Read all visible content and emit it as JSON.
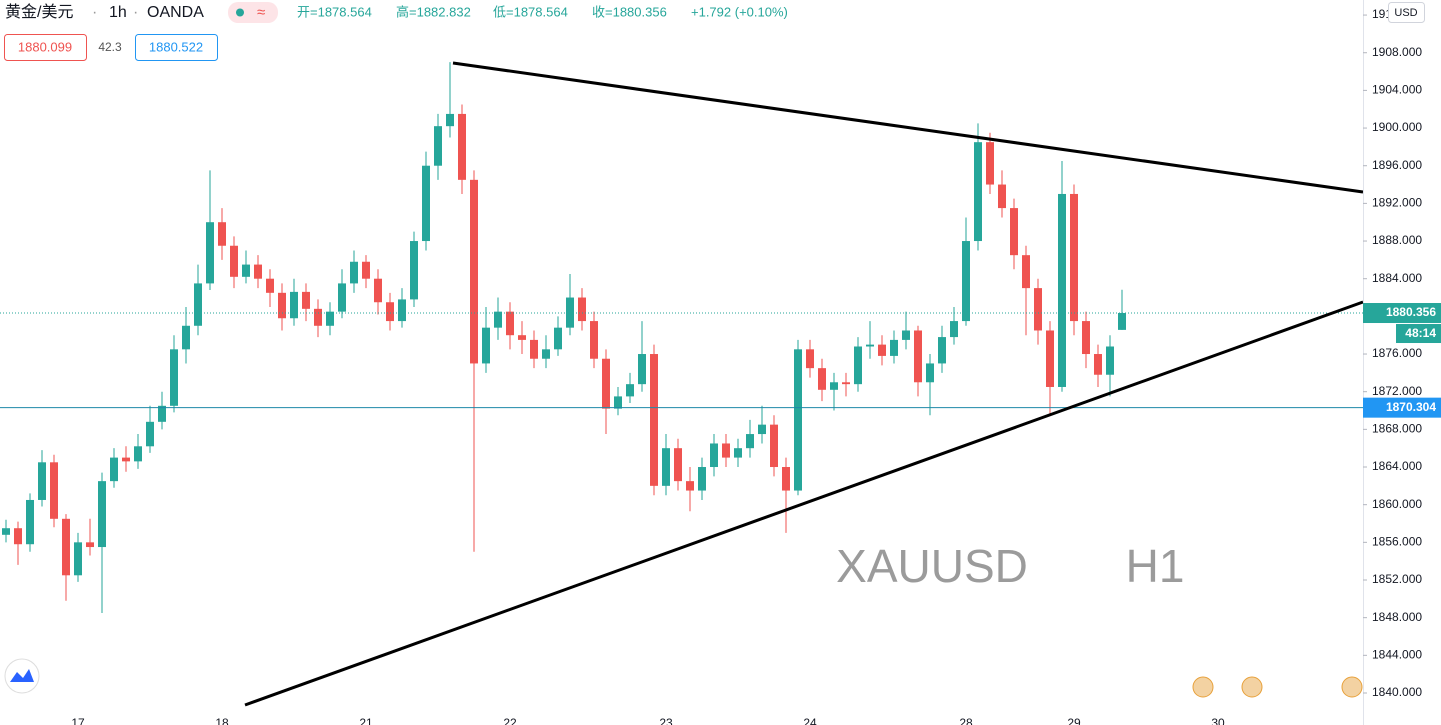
{
  "header": {
    "symbol": "黄金/美元",
    "interval": "1h",
    "source": "OANDA",
    "open": "开=1878.564",
    "high": "高=1882.832",
    "low": "低=1878.564",
    "close": "收=1880.356",
    "change": "+1.792 (+0.10%)",
    "bid": 1880.099,
    "spread": 42.3,
    "ask": 1880.522,
    "currency": "USD"
  },
  "chart_data": {
    "type": "candlestick",
    "watermark": [
      "XAUUSD",
      "H1"
    ],
    "up_color": "#26a69a",
    "down_color": "#ef5350",
    "categories": [
      null,
      null,
      null,
      null,
      null,
      null,
      "17",
      null,
      null,
      null,
      null,
      null,
      null,
      null,
      null,
      null,
      null,
      null,
      "18",
      null,
      null,
      null,
      null,
      null,
      null,
      null,
      null,
      null,
      null,
      null,
      "21",
      null,
      null,
      null,
      null,
      null,
      null,
      null,
      null,
      null,
      null,
      null,
      "22",
      null,
      null,
      null,
      null,
      null,
      null,
      null,
      null,
      null,
      null,
      null,
      null,
      "23",
      null,
      null,
      null,
      null,
      null,
      null,
      null,
      null,
      null,
      null,
      null,
      "24",
      null,
      null,
      null,
      null,
      null,
      null,
      null,
      null,
      null,
      null,
      null,
      null,
      "28",
      null,
      null,
      null,
      null,
      null,
      null,
      null,
      null,
      "29",
      null,
      null,
      null,
      null,
      null,
      null,
      null,
      null,
      null,
      null,
      null,
      "30"
    ],
    "open": [
      1856.8,
      1857.5,
      1855.8,
      1860.5,
      1864.5,
      1858.5,
      1852.5,
      1856.0,
      1855.5,
      1862.5,
      1865.0,
      1864.6,
      1866.2,
      1868.8,
      1870.5,
      1876.5,
      1879.0,
      1883.5,
      1890.0,
      1887.5,
      1884.2,
      1885.5,
      1884.0,
      1882.5,
      1879.8,
      1882.6,
      1880.8,
      1879.0,
      1880.5,
      1883.5,
      1885.8,
      1884.0,
      1881.5,
      1879.5,
      1881.8,
      1888.0,
      1896.0,
      1900.2,
      1901.5,
      1894.5,
      1875.0,
      1878.8,
      1880.5,
      1878.0,
      1877.5,
      1875.5,
      1876.5,
      1878.8,
      1882.0,
      1879.5,
      1875.5,
      1870.2,
      1871.5,
      1872.8,
      1876.0,
      1862.0,
      1866.0,
      1862.5,
      1861.5,
      1864.0,
      1866.5,
      1865.0,
      1866.0,
      1867.5,
      1868.5,
      1864.0,
      1861.5,
      1876.5,
      1874.5,
      1872.2,
      1873.0,
      1872.8,
      1876.8,
      1877.0,
      1875.8,
      1877.5,
      1878.5,
      1873.0,
      1875.0,
      1877.8,
      1879.5,
      1888.0,
      1898.5,
      1894.0,
      1891.5,
      1886.5,
      1883.0,
      1878.5,
      1872.5,
      1893.0,
      1879.5,
      1876.0,
      1873.8,
      1878.564,
      null,
      null,
      null,
      null,
      null,
      null,
      null,
      null
    ],
    "high": [
      1858.4,
      1858.2,
      1861.2,
      1865.8,
      1865.3,
      1859.0,
      1857.0,
      1858.5,
      1863.4,
      1866.0,
      1866.2,
      1867.5,
      1870.5,
      1872.0,
      1878.0,
      1881.0,
      1885.5,
      1895.5,
      1891.5,
      1888.5,
      1887.0,
      1886.5,
      1885.0,
      1883.5,
      1884.0,
      1883.5,
      1881.8,
      1881.5,
      1885.0,
      1887.0,
      1886.5,
      1885.0,
      1882.5,
      1883.0,
      1889.0,
      1897.5,
      1901.5,
      1907.0,
      1902.5,
      1895.5,
      1881.0,
      1882.0,
      1881.5,
      1879.5,
      1878.5,
      1878.0,
      1880.0,
      1884.5,
      1883.0,
      1880.5,
      1876.5,
      1872.5,
      1874.0,
      1879.5,
      1877.0,
      1867.5,
      1867.0,
      1864.0,
      1865.0,
      1867.5,
      1867.5,
      1867.0,
      1869.0,
      1870.5,
      1869.5,
      1865.0,
      1877.5,
      1877.5,
      1875.5,
      1874.0,
      1874.0,
      1877.8,
      1879.5,
      1878.0,
      1878.5,
      1880.5,
      1879.0,
      1876.0,
      1879.0,
      1881.0,
      1890.5,
      1900.5,
      1899.5,
      1895.5,
      1892.5,
      1887.5,
      1884.0,
      1879.5,
      1896.5,
      1894.0,
      1880.5,
      1877.0,
      1878.0,
      1882.832,
      null,
      null,
      null,
      null,
      null,
      null,
      null,
      null
    ],
    "low": [
      1856.0,
      1853.6,
      1855.0,
      1859.8,
      1857.6,
      1849.8,
      1851.8,
      1854.6,
      1848.5,
      1861.8,
      1863.5,
      1863.8,
      1865.5,
      1868.0,
      1869.8,
      1875.0,
      1878.0,
      1882.8,
      1886.0,
      1883.0,
      1883.5,
      1883.0,
      1881.0,
      1878.5,
      1879.0,
      1879.5,
      1877.8,
      1878.0,
      1879.8,
      1882.5,
      1883.0,
      1880.2,
      1878.5,
      1878.8,
      1881.0,
      1887.0,
      1894.5,
      1899.0,
      1893.0,
      1855.0,
      1874.0,
      1877.5,
      1876.5,
      1876.0,
      1874.5,
      1874.5,
      1875.8,
      1878.0,
      1878.5,
      1874.5,
      1867.5,
      1869.5,
      1870.8,
      1872.0,
      1861.0,
      1861.0,
      1861.5,
      1859.3,
      1860.5,
      1863.0,
      1864.0,
      1864.0,
      1865.0,
      1866.5,
      1863.0,
      1857.0,
      1861.0,
      1873.5,
      1871.0,
      1870.0,
      1871.5,
      1872.0,
      1875.5,
      1874.8,
      1875.0,
      1876.5,
      1871.5,
      1869.5,
      1874.0,
      1877.0,
      1879.0,
      1887.0,
      1893.0,
      1890.5,
      1885.0,
      1878.0,
      1877.0,
      1869.5,
      1872.0,
      1878.0,
      1874.5,
      1872.5,
      1871.5,
      1878.564,
      null,
      null,
      null,
      null,
      null,
      null,
      null,
      null
    ],
    "close": [
      1857.5,
      1855.8,
      1860.5,
      1864.5,
      1858.5,
      1852.5,
      1856.0,
      1855.5,
      1862.5,
      1865.0,
      1864.6,
      1866.2,
      1868.8,
      1870.5,
      1876.5,
      1879.0,
      1883.5,
      1890.0,
      1887.5,
      1884.2,
      1885.5,
      1884.0,
      1882.5,
      1879.8,
      1882.6,
      1880.8,
      1879.0,
      1880.5,
      1883.5,
      1885.8,
      1884.0,
      1881.5,
      1879.5,
      1881.8,
      1888.0,
      1896.0,
      1900.2,
      1901.5,
      1894.5,
      1875.0,
      1878.8,
      1880.5,
      1878.0,
      1877.5,
      1875.5,
      1876.5,
      1878.8,
      1882.0,
      1879.5,
      1875.5,
      1870.2,
      1871.5,
      1872.8,
      1876.0,
      1862.0,
      1866.0,
      1862.5,
      1861.5,
      1864.0,
      1866.5,
      1865.0,
      1866.0,
      1867.5,
      1868.5,
      1864.0,
      1861.5,
      1876.5,
      1874.5,
      1872.2,
      1873.0,
      1872.8,
      1876.8,
      1877.0,
      1875.8,
      1877.5,
      1878.5,
      1873.0,
      1875.0,
      1877.8,
      1879.5,
      1888.0,
      1898.5,
      1894.0,
      1891.5,
      1886.5,
      1883.0,
      1878.5,
      1872.5,
      1893.0,
      1879.5,
      1876.0,
      1873.8,
      1876.8,
      1880.356,
      null,
      null,
      null,
      null,
      null,
      null,
      null,
      null
    ],
    "ylim": [
      1836.6,
      1913.6
    ],
    "yticks": [
      {
        "value": 1840,
        "label": "1840.000"
      },
      {
        "value": 1844,
        "label": "1844.000"
      },
      {
        "value": 1848,
        "label": "1848.000"
      },
      {
        "value": 1852,
        "label": "1852.000"
      },
      {
        "value": 1856,
        "label": "1856.000"
      },
      {
        "value": 1860,
        "label": "1860.000"
      },
      {
        "value": 1864,
        "label": "1864.000"
      },
      {
        "value": 1868,
        "label": "1868.000"
      },
      {
        "value": 1872,
        "label": "1872.000"
      },
      {
        "value": 1876,
        "label": "1876.000"
      },
      {
        "value": 1880,
        "label": "1880.000"
      },
      {
        "value": 1884,
        "label": "1884.000"
      },
      {
        "value": 1888,
        "label": "1888.000"
      },
      {
        "value": 1892,
        "label": "1892.000"
      },
      {
        "value": 1896,
        "label": "1896.000"
      },
      {
        "value": 1900,
        "label": "1900.000"
      },
      {
        "value": 1904,
        "label": "1904.000"
      },
      {
        "value": 1908,
        "label": "1908.000"
      },
      {
        "value": 1912,
        "label": "1912.000"
      }
    ],
    "grid": false,
    "last_price": 1880.356,
    "countdown": "48:14",
    "hline": 1870.304
  }
}
